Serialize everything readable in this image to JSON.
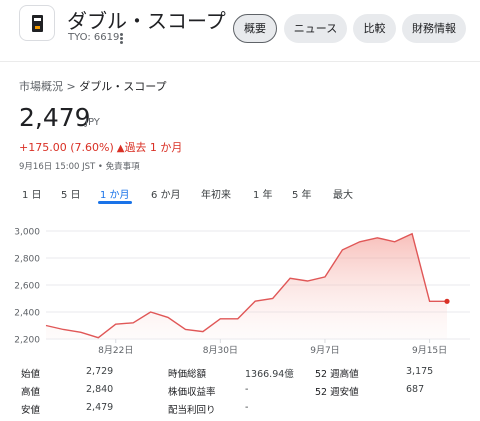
{
  "header": {
    "company_name": "ダブル・スコープ",
    "ticker": "TYO: 6619",
    "tabs": [
      {
        "label": "概要",
        "active": true
      },
      {
        "label": "ニュース",
        "active": false
      },
      {
        "label": "比較",
        "active": false
      },
      {
        "label": "財務情報",
        "active": false
      }
    ]
  },
  "breadcrumb": {
    "root": "市場概況",
    "separator": " > ",
    "current": "ダブル・スコープ"
  },
  "quote": {
    "price": "2,479",
    "currency": "JPY",
    "change": "+175.00 (7.60%)",
    "period": "過去 1 か月",
    "timestamp": "9月16日 15:00 JST • 免責事項"
  },
  "ranges": [
    "1 日",
    "5 日",
    "1 か月",
    "6 か月",
    "年初来",
    "1 年",
    "5 年",
    "最大"
  ],
  "active_range": "1 か月",
  "colors": {
    "accent": "#1a73e8",
    "negative_red": "#d93025",
    "line": "#e05757"
  },
  "chart_data": {
    "type": "area",
    "x": [
      "8月16日",
      "8月17日",
      "8月18日",
      "8月19日",
      "8月22日",
      "8月23日",
      "8月24日",
      "8月25日",
      "8月26日",
      "8月29日",
      "8月30日",
      "8月31日",
      "9月1日",
      "9月2日",
      "9月5日",
      "9月6日",
      "9月7日",
      "9月8日",
      "9月9日",
      "9月12日",
      "9月13日",
      "9月14日",
      "9月15日",
      "9月16日"
    ],
    "y": [
      2300,
      2270,
      2250,
      2210,
      2310,
      2320,
      2400,
      2360,
      2270,
      2255,
      2350,
      2350,
      2480,
      2500,
      2650,
      2630,
      2660,
      2860,
      2920,
      2950,
      2920,
      2980,
      2479,
      2479
    ],
    "xticks": [
      "8月22日",
      "8月30日",
      "9月7日",
      "9月15日"
    ],
    "yticks": [
      "3,000",
      "2,800",
      "2,600",
      "2,400",
      "2,200"
    ],
    "ylim": [
      2200,
      3000
    ],
    "grid": true
  },
  "stats": [
    {
      "label": "始値",
      "value": "2,729"
    },
    {
      "label": "高値",
      "value": "2,840"
    },
    {
      "label": "安値",
      "value": "2,479"
    },
    {
      "label": "時価総額",
      "value": "1366.94億"
    },
    {
      "label": "株価収益率",
      "value": "-"
    },
    {
      "label": "配当利回り",
      "value": "-"
    },
    {
      "label": "52 週高値",
      "value": "3,175"
    },
    {
      "label": "52 週安値",
      "value": "687"
    }
  ]
}
